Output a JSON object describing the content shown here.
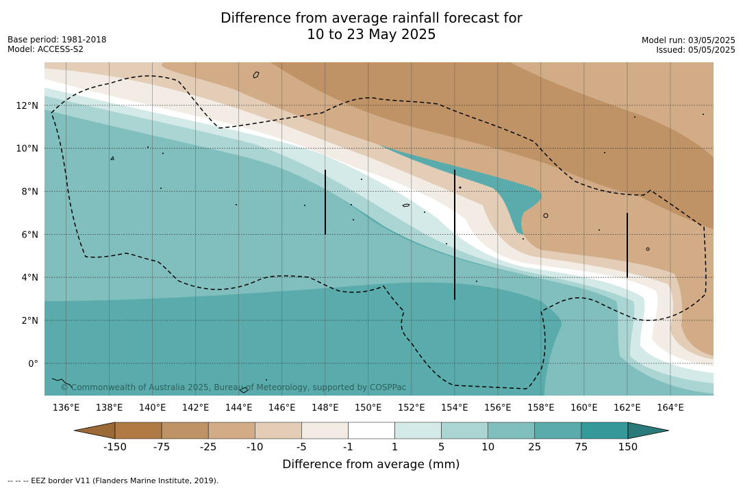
{
  "title": {
    "line1": "Difference from average rainfall forecast for",
    "line2": "10 to 23 May 2025"
  },
  "meta_left": {
    "base_period": "Base period: 1981-2018",
    "model": "Model: ACCESS-S2"
  },
  "meta_right": {
    "model_run": "Model run: 03/05/2025",
    "issued": "Issued: 05/05/2025"
  },
  "map": {
    "lon_range": [
      135,
      166
    ],
    "lat_range": [
      -1.5,
      14
    ],
    "lon_ticks": [
      "136°E",
      "138°E",
      "140°E",
      "142°E",
      "144°E",
      "146°E",
      "148°E",
      "150°E",
      "152°E",
      "154°E",
      "156°E",
      "158°E",
      "160°E",
      "162°E",
      "164°E"
    ],
    "lat_ticks": [
      "12°N",
      "10°N",
      "8°N",
      "6°N",
      "4°N",
      "2°N",
      "0°"
    ],
    "copyright": "© Commonwealth of Australia 2025, Bureau of Meteorology, supported by COSPPac"
  },
  "colorbar": {
    "labels": [
      "-150",
      "-75",
      "-25",
      "-10",
      "-5",
      "-1",
      "1",
      "5",
      "10",
      "25",
      "75",
      "150"
    ],
    "colors": [
      "#9c6a37",
      "#b07a44",
      "#bf9366",
      "#d1ac86",
      "#e3cdb7",
      "#f2ece5",
      "#ffffff",
      "#d4eae8",
      "#aad5d3",
      "#81bfbe",
      "#5aabab",
      "#359999",
      "#2a7a7a"
    ],
    "title": "Difference from average (mm)"
  },
  "footer": "--  --  -- EEZ border V11 (Flanders Marine Institute, 2019)."
}
